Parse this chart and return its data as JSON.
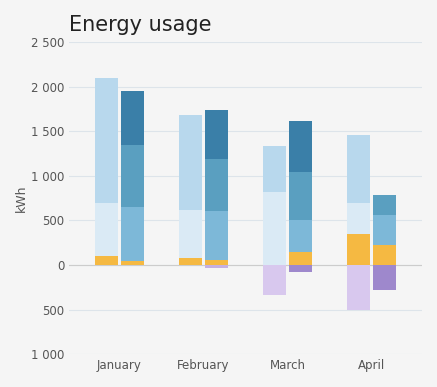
{
  "title": "Energy usage",
  "ylabel": "kWh",
  "months": [
    "January",
    "February",
    "March",
    "April"
  ],
  "ylim": [
    -1000,
    2500
  ],
  "yticks": [
    -1000,
    -500,
    0,
    500,
    1000,
    1500,
    2000,
    2500
  ],
  "ytick_labels": [
    "1 000",
    "500",
    "0",
    "500",
    "1 000",
    "1 500",
    "2 000",
    "2 500"
  ],
  "bar_width": 0.28,
  "bars": [
    {
      "month_idx": 0,
      "side": "left",
      "segments": [
        {
          "value": 700,
          "base": 0,
          "color": "#daeaf5"
        },
        {
          "value": 1400,
          "base": 700,
          "color": "#b8d8ed"
        },
        {
          "value": 100,
          "base": 0,
          "color": "#f5b942",
          "neg": false,
          "at_top": false,
          "near_zero": true
        }
      ]
    },
    {
      "month_idx": 0,
      "side": "right",
      "segments": [
        {
          "value": 650,
          "base": 0,
          "color": "#7db8d8"
        },
        {
          "value": 700,
          "base": 650,
          "color": "#5a9fc0"
        },
        {
          "value": 600,
          "base": 1350,
          "color": "#3a7fa8"
        },
        {
          "value": 50,
          "base": 0,
          "color": "#f5b942",
          "near_zero": true
        }
      ]
    },
    {
      "month_idx": 1,
      "side": "left",
      "segments": [
        {
          "value": 620,
          "base": 0,
          "color": "#daeaf5"
        },
        {
          "value": 1060,
          "base": 620,
          "color": "#b8d8ed"
        },
        {
          "value": 80,
          "base": 0,
          "color": "#f5b942",
          "near_zero": true
        }
      ]
    },
    {
      "month_idx": 1,
      "side": "right",
      "segments": [
        {
          "value": 600,
          "base": 0,
          "color": "#7db8d8"
        },
        {
          "value": 590,
          "base": 600,
          "color": "#5a9fc0"
        },
        {
          "value": 550,
          "base": 1190,
          "color": "#3a7fa8"
        },
        {
          "value": 60,
          "base": 0,
          "color": "#f5b942",
          "near_zero": true
        },
        {
          "value": -30,
          "base": 0,
          "color": "#c5b0e0",
          "neg": true
        }
      ]
    },
    {
      "month_idx": 2,
      "side": "left",
      "segments": [
        {
          "value": 820,
          "base": 0,
          "color": "#daeaf5"
        },
        {
          "value": 520,
          "base": 820,
          "color": "#b8d8ed"
        },
        {
          "value": -340,
          "base": 0,
          "color": "#d8c8ee",
          "neg": true
        }
      ]
    },
    {
      "month_idx": 2,
      "side": "right",
      "segments": [
        {
          "value": 500,
          "base": 0,
          "color": "#7db8d8"
        },
        {
          "value": 540,
          "base": 500,
          "color": "#5a9fc0"
        },
        {
          "value": 580,
          "base": 1040,
          "color": "#3a7fa8"
        },
        {
          "value": 150,
          "base": 0,
          "color": "#f5b942",
          "near_zero": true
        },
        {
          "value": -80,
          "base": 0,
          "color": "#9e88cc",
          "neg": true
        }
      ]
    },
    {
      "month_idx": 3,
      "side": "left",
      "segments": [
        {
          "value": 700,
          "base": 0,
          "color": "#daeaf5"
        },
        {
          "value": 760,
          "base": 700,
          "color": "#b8d8ed"
        },
        {
          "value": 350,
          "base": 0,
          "color": "#f5b942",
          "near_zero": true
        },
        {
          "value": -500,
          "base": 0,
          "color": "#d8c8ee",
          "neg": true
        }
      ]
    },
    {
      "month_idx": 3,
      "side": "right",
      "segments": [
        {
          "value": 560,
          "base": 0,
          "color": "#7db8d8"
        },
        {
          "value": 220,
          "base": 560,
          "color": "#5a9fc0"
        },
        {
          "value": 220,
          "base": 0,
          "color": "#f5b942",
          "near_zero": true
        },
        {
          "value": -280,
          "base": 0,
          "color": "#9e88cc",
          "neg": true
        }
      ]
    }
  ],
  "background_color": "#f5f5f5",
  "grid_color": "#dde4ea",
  "title_fontsize": 15,
  "label_fontsize": 9,
  "tick_fontsize": 8.5
}
